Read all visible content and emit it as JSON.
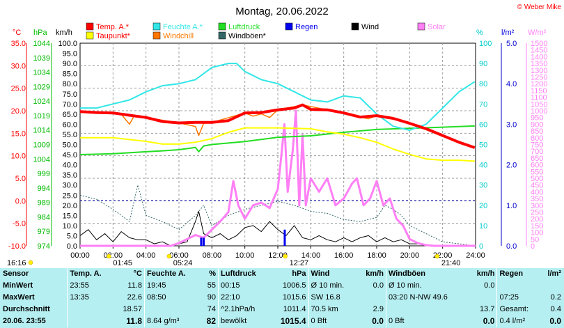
{
  "title": "Montag, 20.06.2022",
  "copyright": "© Weber Mike",
  "legend": [
    {
      "name": "Temp. A.*",
      "color": "#ff0000"
    },
    {
      "name": "Feuchte A.*",
      "color": "#33e6e6"
    },
    {
      "name": "Luftdruck",
      "color": "#22dd22"
    },
    {
      "name": "Regen",
      "color": "#0000ee"
    },
    {
      "name": "Wind",
      "color": "#000000"
    },
    {
      "name": "Solar",
      "color": "#ff7ff5"
    },
    {
      "name": "Taupunkt*",
      "color": "#ffff00"
    },
    {
      "name": "Windchill",
      "color": "#ff7700"
    },
    {
      "name": "Windböen*",
      "color": "#336666"
    }
  ],
  "axis_units": {
    "temp": "°C",
    "hpa": "hPa",
    "kmh": "km/h",
    "pct": "%",
    "rain": "l/m²",
    "solar": "W/m²"
  },
  "axis_ticks": {
    "temp": [
      "35.0",
      "30.0",
      "25.0",
      "20.0",
      "15.0",
      "10.0",
      "5.0",
      "0.0",
      "-5.0",
      "-10.0"
    ],
    "hpa": [
      "1044",
      "1039",
      "1034",
      "1029",
      "1024",
      "1019",
      "1014",
      "1009",
      "1004",
      "999",
      "994",
      "989",
      "984",
      "979",
      "974"
    ],
    "kmh": [
      "100.0",
      "95.0",
      "90.0",
      "85.0",
      "80.0",
      "75.0",
      "70.0",
      "65.0",
      "60.0",
      "55.0",
      "50.0",
      "45.0",
      "40.0",
      "35.0",
      "30.0",
      "25.0",
      "20.0",
      "15.0",
      "10.0",
      "5.0",
      "0.0"
    ],
    "pct": [
      "100",
      "90",
      "80",
      "70",
      "60",
      "50",
      "40",
      "30",
      "20",
      "10",
      "0"
    ],
    "rain": [
      "5.0",
      "4.0",
      "3.0",
      "2.0",
      "1.0",
      "0.0"
    ],
    "solar": [
      "1500",
      "1450",
      "1400",
      "1350",
      "1300",
      "1250",
      "1200",
      "1150",
      "1100",
      "1050",
      "1000",
      "950",
      "900",
      "850",
      "800",
      "750",
      "700",
      "650",
      "600",
      "550",
      "500",
      "450",
      "400",
      "350",
      "300",
      "250",
      "200",
      "150",
      "100",
      "50",
      "0"
    ],
    "time": [
      "00:00",
      "02:00",
      "04:00",
      "06:00",
      "08:00",
      "10:00",
      "12:00",
      "14:00",
      "16:00",
      "18:00",
      "20:00",
      "22:00",
      "24:00"
    ]
  },
  "sun_markers": [
    {
      "label": "16:16",
      "hour": -3.7
    },
    {
      "label": "01:45",
      "hour": 1.75
    },
    {
      "label": "05:24",
      "hour": 5.4
    },
    {
      "label": "12:27",
      "hour": 12.45
    },
    {
      "label": "21:40",
      "hour": 21.67
    }
  ],
  "chart_data": {
    "type": "line",
    "x_unit": "hour",
    "xlim": [
      0,
      24
    ],
    "series": [
      {
        "name": "Temp. A.*",
        "axis": "temp",
        "points": [
          [
            0,
            19.8
          ],
          [
            1,
            19.6
          ],
          [
            2,
            19.5
          ],
          [
            3,
            19.0
          ],
          [
            4,
            18.5
          ],
          [
            5,
            17.6
          ],
          [
            6,
            17.3
          ],
          [
            7,
            17.4
          ],
          [
            8,
            17.4
          ],
          [
            9,
            17.8
          ],
          [
            10,
            19.5
          ],
          [
            11,
            19.6
          ],
          [
            12,
            20.2
          ],
          [
            13,
            20.6
          ],
          [
            13.5,
            21.3
          ],
          [
            14,
            20.3
          ],
          [
            15,
            20.2
          ],
          [
            16,
            19.5
          ],
          [
            17,
            18.6
          ],
          [
            18,
            18.9
          ],
          [
            19,
            18.3
          ],
          [
            20,
            17.2
          ],
          [
            21,
            16.0
          ],
          [
            22,
            14.5
          ],
          [
            23,
            13.0
          ],
          [
            23.95,
            11.8
          ]
        ]
      },
      {
        "name": "Windchill",
        "axis": "temp",
        "points": [
          [
            0,
            19.8
          ],
          [
            2.5,
            19.2
          ],
          [
            3,
            17.0
          ],
          [
            3.3,
            19.0
          ],
          [
            4,
            18.5
          ],
          [
            6,
            17.3
          ],
          [
            7,
            16.5
          ],
          [
            7.2,
            14.5
          ],
          [
            7.5,
            17.2
          ],
          [
            8,
            17.4
          ],
          [
            10,
            19.5
          ],
          [
            10.5,
            18.8
          ],
          [
            11,
            19.3
          ],
          [
            11.5,
            18.5
          ],
          [
            12,
            20.2
          ],
          [
            13.5,
            21.3
          ],
          [
            15,
            20.2
          ],
          [
            16.5,
            19.0
          ],
          [
            17.5,
            18.2
          ],
          [
            18,
            18.9
          ],
          [
            19,
            18.3
          ],
          [
            22,
            14.5
          ],
          [
            23.95,
            11.8
          ]
        ]
      },
      {
        "name": "Taupunkt*",
        "axis": "temp",
        "points": [
          [
            0,
            14.0
          ],
          [
            2,
            14.0
          ],
          [
            4,
            13.2
          ],
          [
            5,
            12.6
          ],
          [
            6,
            12.6
          ],
          [
            7,
            13.0
          ],
          [
            8,
            13.8
          ],
          [
            9,
            15.2
          ],
          [
            10,
            16.2
          ],
          [
            12,
            16.2
          ],
          [
            14,
            16.0
          ],
          [
            15,
            15.3
          ],
          [
            16,
            14.8
          ],
          [
            17,
            14.0
          ],
          [
            18,
            13.0
          ],
          [
            19,
            11.5
          ],
          [
            20,
            10.3
          ],
          [
            21,
            9.3
          ],
          [
            22,
            9.0
          ],
          [
            23,
            9.0
          ],
          [
            23.95,
            8.8
          ]
        ]
      },
      {
        "name": "Feuchte A.*",
        "axis": "pct",
        "points": [
          [
            0,
            68
          ],
          [
            1,
            68
          ],
          [
            2,
            70
          ],
          [
            3,
            72
          ],
          [
            4,
            76
          ],
          [
            5,
            79
          ],
          [
            6,
            80
          ],
          [
            7,
            82
          ],
          [
            8,
            88
          ],
          [
            9,
            90
          ],
          [
            9.5,
            90
          ],
          [
            10,
            86
          ],
          [
            11,
            82
          ],
          [
            12,
            80
          ],
          [
            13,
            76
          ],
          [
            14,
            72
          ],
          [
            15,
            71
          ],
          [
            16,
            74
          ],
          [
            17,
            73
          ],
          [
            18,
            65
          ],
          [
            19,
            59
          ],
          [
            20,
            57
          ],
          [
            21,
            60
          ],
          [
            22,
            68
          ],
          [
            23,
            76
          ],
          [
            23.95,
            81
          ]
        ]
      },
      {
        "name": "Luftdruck",
        "axis": "hpa",
        "points": [
          [
            0,
            1005.5
          ],
          [
            2,
            1005.8
          ],
          [
            4,
            1006.5
          ],
          [
            5,
            1006.8
          ],
          [
            6,
            1007.2
          ],
          [
            7,
            1008.0
          ],
          [
            7.2,
            1006.5
          ],
          [
            7.5,
            1008.5
          ],
          [
            8,
            1009.0
          ],
          [
            10,
            1010.0
          ],
          [
            12,
            1011.5
          ],
          [
            14,
            1012.0
          ],
          [
            16,
            1013.2
          ],
          [
            18,
            1014.2
          ],
          [
            20,
            1014.6
          ],
          [
            22,
            1015.0
          ],
          [
            23.95,
            1015.4
          ]
        ]
      },
      {
        "name": "Wind",
        "axis": "kmh",
        "points": [
          [
            0,
            5
          ],
          [
            0.5,
            8
          ],
          [
            1,
            3
          ],
          [
            1.5,
            6
          ],
          [
            2,
            2
          ],
          [
            2.5,
            7
          ],
          [
            3,
            4
          ],
          [
            3.5,
            3
          ],
          [
            4,
            3
          ],
          [
            4.5,
            1
          ],
          [
            5,
            2
          ],
          [
            5.5,
            0
          ],
          [
            6,
            1
          ],
          [
            6.5,
            2
          ],
          [
            7,
            12
          ],
          [
            7.2,
            17
          ],
          [
            7.5,
            6
          ],
          [
            8,
            4
          ],
          [
            8.5,
            6
          ],
          [
            9,
            3
          ],
          [
            9.5,
            5
          ],
          [
            10,
            9
          ],
          [
            10.5,
            10
          ],
          [
            11,
            7
          ],
          [
            11.5,
            12
          ],
          [
            12,
            8
          ],
          [
            12.5,
            5
          ],
          [
            13,
            10
          ],
          [
            13.5,
            4
          ],
          [
            14,
            3
          ],
          [
            14.5,
            5
          ],
          [
            15,
            3
          ],
          [
            15.5,
            2
          ],
          [
            16,
            4
          ],
          [
            16.5,
            2
          ],
          [
            17,
            4
          ],
          [
            17.5,
            5
          ],
          [
            18,
            2
          ],
          [
            18.5,
            4
          ],
          [
            19,
            2
          ],
          [
            19.5,
            3
          ],
          [
            20,
            1
          ],
          [
            20.5,
            1
          ],
          [
            21,
            0
          ],
          [
            22,
            0
          ],
          [
            23,
            0
          ],
          [
            24,
            0
          ]
        ]
      },
      {
        "name": "Windböen*",
        "axis": "kmh",
        "points": [
          [
            0,
            25
          ],
          [
            1,
            23
          ],
          [
            2,
            18
          ],
          [
            3,
            12
          ],
          [
            3.5,
            30
          ],
          [
            4,
            15
          ],
          [
            5,
            12
          ],
          [
            6,
            8
          ],
          [
            7,
            15
          ],
          [
            7.5,
            20
          ],
          [
            8,
            10
          ],
          [
            9,
            15
          ],
          [
            10,
            18
          ],
          [
            11,
            20
          ],
          [
            12,
            22
          ],
          [
            13,
            20
          ],
          [
            14,
            17
          ],
          [
            15,
            16
          ],
          [
            16,
            13
          ],
          [
            17,
            12
          ],
          [
            18,
            14
          ],
          [
            18.5,
            20
          ],
          [
            19,
            18
          ],
          [
            19.5,
            15
          ],
          [
            20,
            10
          ],
          [
            20.5,
            8
          ],
          [
            21,
            6
          ],
          [
            21.5,
            4
          ],
          [
            22,
            2
          ],
          [
            23,
            1
          ],
          [
            24,
            0
          ]
        ]
      },
      {
        "name": "Solar",
        "axis": "solar",
        "points": [
          [
            0,
            0
          ],
          [
            5.5,
            0
          ],
          [
            6,
            20
          ],
          [
            7,
            80
          ],
          [
            7.5,
            60
          ],
          [
            8,
            120
          ],
          [
            8.5,
            180
          ],
          [
            9,
            250
          ],
          [
            9.3,
            480
          ],
          [
            9.6,
            300
          ],
          [
            10,
            200
          ],
          [
            10.5,
            300
          ],
          [
            11,
            320
          ],
          [
            11.5,
            280
          ],
          [
            12,
            420
          ],
          [
            12.2,
            650
          ],
          [
            12.4,
            900
          ],
          [
            12.6,
            400
          ],
          [
            12.9,
            700
          ],
          [
            13.1,
            1000
          ],
          [
            13.3,
            300
          ],
          [
            13.5,
            820
          ],
          [
            13.7,
            300
          ],
          [
            14,
            500
          ],
          [
            14.5,
            400
          ],
          [
            15,
            500
          ],
          [
            15.5,
            300
          ],
          [
            16,
            350
          ],
          [
            16.5,
            460
          ],
          [
            16.8,
            500
          ],
          [
            17.2,
            300
          ],
          [
            17.6,
            350
          ],
          [
            18,
            480
          ],
          [
            18.4,
            300
          ],
          [
            18.8,
            350
          ],
          [
            19.2,
            200
          ],
          [
            19.6,
            150
          ],
          [
            20,
            50
          ],
          [
            20.5,
            20
          ],
          [
            21,
            5
          ],
          [
            21.5,
            0
          ],
          [
            24,
            0
          ]
        ]
      },
      {
        "name": "Regen",
        "axis": "rain",
        "points": [
          [
            7.35,
            0.2
          ],
          [
            7.5,
            0.2
          ],
          [
            12.42,
            0.4
          ]
        ]
      }
    ],
    "ranges": {
      "temp": [
        -10,
        35
      ],
      "hpa": [
        974,
        1044
      ],
      "kmh": [
        0,
        100
      ],
      "pct": [
        0,
        100
      ],
      "rain": [
        0,
        5
      ],
      "solar": [
        0,
        1500
      ]
    },
    "grid": true,
    "legend_position": "top"
  },
  "summary": {
    "headers": [
      "Sensor",
      "Temp. A.",
      "°C",
      "Feuchte A.",
      "%",
      "Luftdruck",
      "hPa",
      "Wind",
      "km/h",
      "Windböen",
      "km/h",
      "Regen",
      "l/m²"
    ],
    "rows": [
      {
        "label": "MinWert",
        "cells": [
          "23:55",
          "11.8",
          "19:45",
          "55",
          "00:15",
          "1006.5",
          "Ø 10 min.",
          "0.0",
          "Ø 10 min.",
          "0.0",
          "",
          ""
        ]
      },
      {
        "label": "MaxWert",
        "cells": [
          "13:35",
          "22.6",
          "08:50",
          "90",
          "22:10",
          "1015.6",
          "SW 16.8",
          "",
          "03:20   N-NW 49.6",
          "",
          "07:25",
          "0.2"
        ]
      },
      {
        "label": "Durchschnitt",
        "cells": [
          "",
          "18.57",
          "",
          "74",
          "^2.1hPa/h",
          "1011.4",
          "70.5 km",
          "2.9",
          "",
          "13.7",
          "Gesamt:",
          "0.4"
        ]
      },
      {
        "label": "20.06.  23:55",
        "cells": [
          "",
          "11.8",
          "8.64 g/m³",
          "82",
          "bewölkt",
          "1015.4",
          "0 Bft",
          "0.0",
          "0 Bft",
          "0.0",
          "0.4 l/m²",
          "0.0"
        ]
      }
    ]
  }
}
